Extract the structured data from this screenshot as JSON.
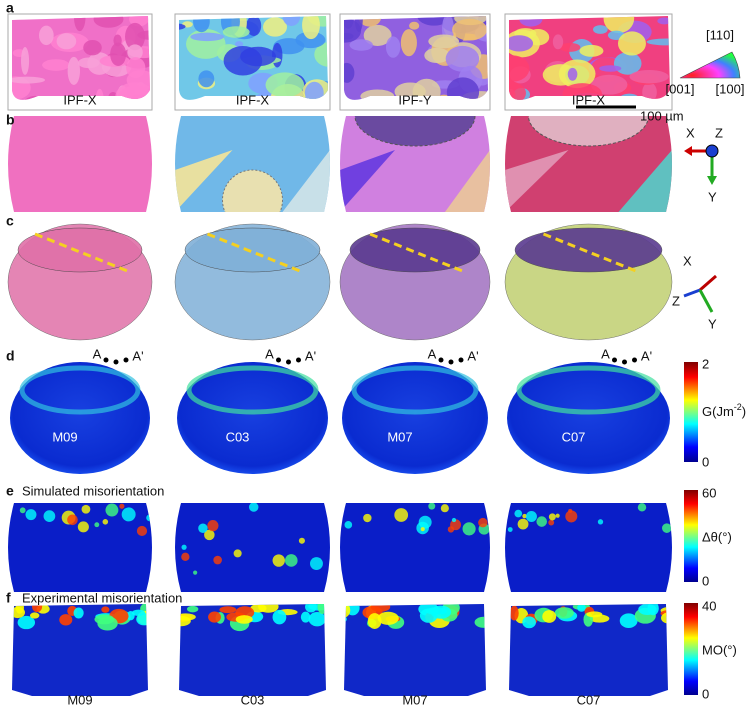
{
  "panel_a": {
    "label": "a",
    "captions": [
      "IPF-X",
      "IPF-X",
      "IPF-Y",
      "IPF-X"
    ],
    "legend": {
      "top": "[110]",
      "left": "[001]",
      "right": "[100]"
    },
    "scale_bar": "100 µm"
  },
  "panel_b": {
    "label": "b",
    "axes": {
      "x": "X",
      "z": "Z",
      "y": "Y"
    }
  },
  "panel_c": {
    "label": "c",
    "axes": {
      "x": "X",
      "z": "Z",
      "y": "Y"
    }
  },
  "panel_d": {
    "label": "d",
    "markers": [
      {
        "start": "A",
        "end": "A'"
      },
      {
        "start": "A",
        "end": "A'"
      },
      {
        "start": "A",
        "end": "A'"
      },
      {
        "start": "A",
        "end": "A'"
      }
    ],
    "sample_labels": [
      "M09",
      "C03",
      "M07",
      "C07"
    ],
    "colorbar": {
      "max": "2",
      "min": "0",
      "label": "G(Jm",
      "label_sup": "-2",
      "label_end": ")"
    }
  },
  "panel_e": {
    "label": "e",
    "title": "Simulated misorientation",
    "colorbar": {
      "max": "60",
      "min": "0",
      "label": "Δθ(°)"
    }
  },
  "panel_f": {
    "label": "f",
    "title": "Experimental misorientation",
    "colorbar": {
      "max": "40",
      "min": "0",
      "label": "MO(°)"
    },
    "sample_labels": [
      "M09",
      "C03",
      "M07",
      "C07"
    ]
  }
}
